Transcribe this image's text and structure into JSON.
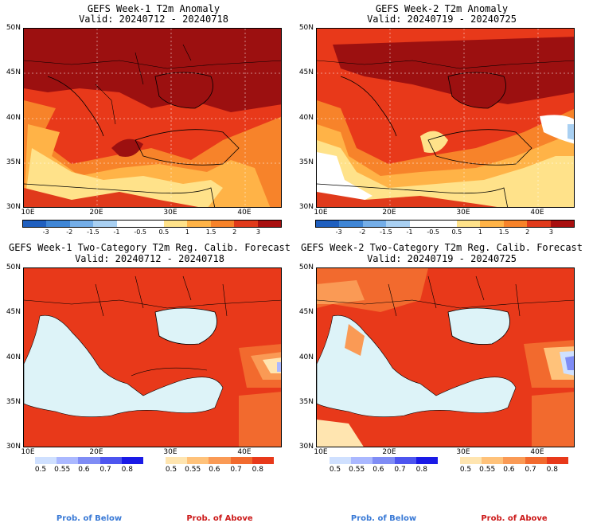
{
  "panels": [
    {
      "id": "w1-anom",
      "title": "GEFS Week-1 T2m Anomaly",
      "valid": "Valid: 20240712 - 20240718",
      "kind": "anomaly"
    },
    {
      "id": "w2-anom",
      "title": "GEFS Week-2 T2m Anomaly",
      "valid": "Valid: 20240719 - 20240725",
      "kind": "anomaly"
    },
    {
      "id": "w1-prob",
      "title": "GEFS Week-1 Two-Category T2m Reg. Calib. Forecast",
      "valid": "Valid: 20240712 - 20240718",
      "kind": "prob"
    },
    {
      "id": "w2-prob",
      "title": "GEFS Week-2 Two-Category T2m Reg. Calib. Forecast",
      "valid": "Valid: 20240719 - 20240725",
      "kind": "prob"
    }
  ],
  "lat_labels": [
    "50N",
    "45N",
    "40N",
    "35N",
    "30N"
  ],
  "lon_labels": [
    "10E",
    "20E",
    "30E",
    "40E"
  ],
  "anomaly_scale": {
    "labels": [
      "-3",
      "-2",
      "-1.5",
      "-1",
      "-0.5",
      "0.5",
      "1",
      "1.5",
      "2",
      "3"
    ],
    "colors": [
      "#1f5fbf",
      "#3f86d6",
      "#74aee8",
      "#a9d0f2",
      "#ffffff",
      "#ffffff",
      "#ffe28a",
      "#ffb347",
      "#f7832a",
      "#e03a1b",
      "#a80f0f"
    ]
  },
  "prob_below": {
    "labels": [
      "0.5",
      "0.55",
      "0.6",
      "0.7",
      "0.8"
    ],
    "colors": [
      "#cfe0ff",
      "#aab8ff",
      "#7f8cf5",
      "#4d55ef",
      "#1a1ae6"
    ]
  },
  "prob_above": {
    "labels": [
      "0.5",
      "0.55",
      "0.6",
      "0.7",
      "0.8"
    ],
    "colors": [
      "#ffe5b0",
      "#ffc27a",
      "#fa9a55",
      "#f26a2e",
      "#e8391a"
    ]
  },
  "legend": {
    "below": "Prob. of Below",
    "above": "Prob. of Above",
    "below_color": "#3a7ad6",
    "above_color": "#cc1a1a"
  }
}
